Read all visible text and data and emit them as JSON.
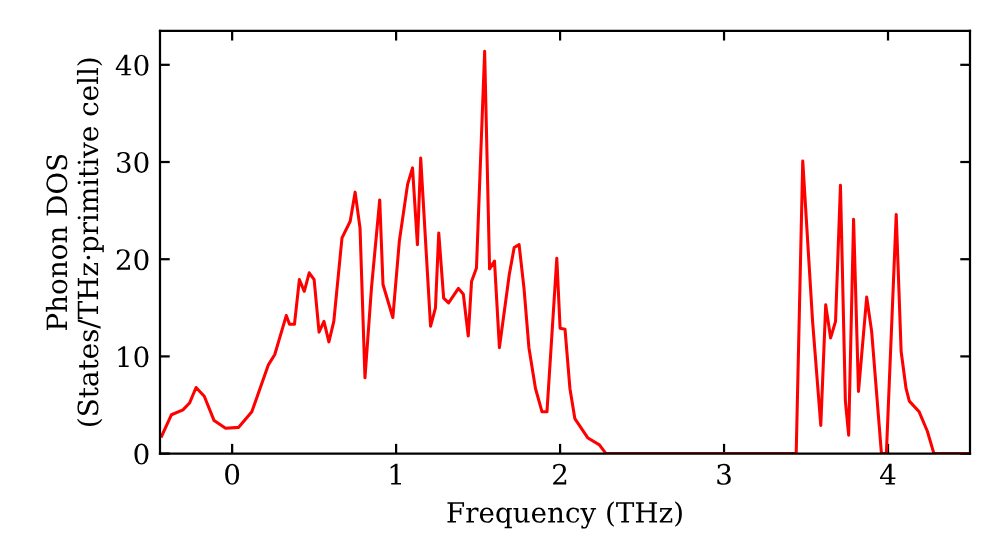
{
  "chart_data": {
    "type": "line",
    "xlabel": "Frequency (THz)",
    "ylabel": "Phonon DOS\n(States/THz·primitive cell)",
    "xlim": [
      -0.44,
      4.5
    ],
    "ylim": [
      0,
      43.5
    ],
    "xticks": [
      0,
      1,
      2,
      3,
      4
    ],
    "yticks": [
      0,
      10,
      20,
      30,
      40
    ],
    "grid": false,
    "legend": false,
    "marker": "none",
    "line_style": "solid",
    "series": [
      {
        "color": "#ff0000",
        "x": [
          -0.43,
          -0.37,
          -0.3,
          -0.26,
          -0.22,
          -0.17,
          -0.11,
          -0.04,
          0.04,
          0.12,
          0.22,
          0.26,
          0.33,
          0.35,
          0.38,
          0.41,
          0.44,
          0.47,
          0.5,
          0.53,
          0.56,
          0.59,
          0.62,
          0.67,
          0.72,
          0.75,
          0.78,
          0.81,
          0.85,
          0.9,
          0.92,
          0.98,
          1.02,
          1.07,
          1.1,
          1.13,
          1.15,
          1.21,
          1.24,
          1.26,
          1.29,
          1.32,
          1.38,
          1.41,
          1.44,
          1.46,
          1.49,
          1.54,
          1.57,
          1.6,
          1.63,
          1.69,
          1.72,
          1.75,
          1.78,
          1.81,
          1.85,
          1.89,
          1.92,
          1.98,
          2.0,
          2.03,
          2.06,
          2.09,
          2.17,
          2.24,
          2.28,
          3.44,
          3.48,
          3.54,
          3.59,
          3.62,
          3.65,
          3.68,
          3.71,
          3.74,
          3.76,
          3.79,
          3.82,
          3.87,
          3.9,
          3.96,
          3.99,
          4.05,
          4.08,
          4.11,
          4.13,
          4.19,
          4.24,
          4.28,
          4.5
        ],
        "values": [
          1.8,
          4.0,
          4.5,
          5.2,
          6.8,
          5.9,
          3.4,
          2.6,
          2.7,
          4.3,
          9.1,
          10.2,
          14.2,
          13.3,
          13.3,
          17.9,
          16.7,
          18.6,
          17.9,
          12.5,
          13.6,
          11.5,
          13.6,
          22.2,
          23.9,
          26.9,
          23.2,
          7.8,
          17.1,
          26.1,
          17.4,
          14.0,
          21.9,
          27.7,
          29.4,
          21.5,
          30.4,
          13.1,
          15.0,
          22.7,
          16.0,
          15.5,
          17.0,
          16.4,
          12.1,
          17.7,
          19.1,
          41.4,
          19.0,
          19.8,
          10.9,
          18.4,
          21.2,
          21.5,
          17.0,
          10.9,
          6.7,
          4.3,
          4.3,
          20.1,
          12.9,
          12.8,
          6.7,
          3.6,
          1.6,
          0.9,
          0,
          0,
          30.1,
          13.6,
          2.9,
          15.3,
          11.9,
          13.6,
          27.6,
          5.4,
          1.9,
          24.1,
          6.4,
          16.1,
          12.6,
          0,
          0,
          24.6,
          10.5,
          6.7,
          5.4,
          4.3,
          2.3,
          0,
          0
        ]
      }
    ]
  }
}
